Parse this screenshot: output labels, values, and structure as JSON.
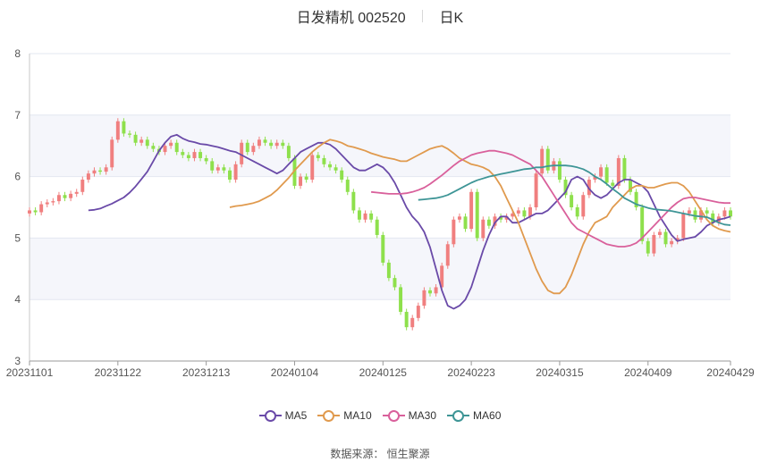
{
  "header": {
    "title": "日发精机 002520",
    "period": "日K"
  },
  "source": {
    "label": "数据来源：",
    "value": "恒生聚源"
  },
  "colors": {
    "up": "#f07f7f",
    "down": "#8ee04c",
    "grid": "#e3e7f1",
    "band": "#f5f6fb"
  },
  "chart_data": {
    "type": "candlestick",
    "title": "日发精机 002520",
    "ylim": [
      3,
      8
    ],
    "yticks": [
      "3",
      "4",
      "5",
      "6",
      "7",
      "8"
    ],
    "x_tick_labels": [
      "20231101",
      "20231122",
      "20231213",
      "20240104",
      "20240125",
      "20240223",
      "20240315",
      "20240409",
      "20240429"
    ],
    "x_tick_index": [
      0,
      15,
      30,
      45,
      60,
      75,
      90,
      105,
      119
    ],
    "n_days": 120,
    "close": [
      5.45,
      5.42,
      5.55,
      5.58,
      5.6,
      5.7,
      5.65,
      5.72,
      5.75,
      5.95,
      6.05,
      6.1,
      6.08,
      6.15,
      6.6,
      6.9,
      6.7,
      6.68,
      6.55,
      6.6,
      6.5,
      6.45,
      6.4,
      6.5,
      6.55,
      6.4,
      6.35,
      6.3,
      6.4,
      6.3,
      6.25,
      6.1,
      6.15,
      6.1,
      5.95,
      6.2,
      6.55,
      6.4,
      6.5,
      6.6,
      6.55,
      6.5,
      6.55,
      6.5,
      6.3,
      5.85,
      6.0,
      5.95,
      6.35,
      6.3,
      6.2,
      6.15,
      6.1,
      5.95,
      5.75,
      5.45,
      5.3,
      5.4,
      5.3,
      5.05,
      4.6,
      4.35,
      4.2,
      3.8,
      3.55,
      3.7,
      3.9,
      4.15,
      4.1,
      4.2,
      4.55,
      4.9,
      5.3,
      5.35,
      5.15,
      5.75,
      5.0,
      5.3,
      5.2,
      5.35,
      5.3,
      5.35,
      5.4,
      5.45,
      5.35,
      5.5,
      6.05,
      6.45,
      6.1,
      6.25,
      5.95,
      5.7,
      5.5,
      5.35,
      5.7,
      5.95,
      6.0,
      6.15,
      5.9,
      5.85,
      6.3,
      5.95,
      5.75,
      5.5,
      4.95,
      4.75,
      5.05,
      5.1,
      4.9,
      4.95,
      5.0,
      5.4,
      5.45,
      5.3,
      5.45,
      5.4,
      5.25,
      5.35,
      5.45,
      5.35
    ],
    "series": [
      {
        "name": "MA5",
        "color": "#6a4aa8",
        "values": [
          5.45,
          5.46,
          5.48,
          5.52,
          5.56,
          5.61,
          5.66,
          5.74,
          5.84,
          5.96,
          6.08,
          6.25,
          6.42,
          6.55,
          6.65,
          6.68,
          6.62,
          6.58,
          6.56,
          6.53,
          6.52,
          6.5,
          6.48,
          6.45,
          6.42,
          6.4,
          6.35,
          6.3,
          6.25,
          6.2,
          6.15,
          6.1,
          6.05,
          6.1,
          6.2,
          6.3,
          6.4,
          6.45,
          6.5,
          6.55,
          6.55,
          6.52,
          6.45,
          6.35,
          6.25,
          6.15,
          6.1,
          6.1,
          6.15,
          6.2,
          6.15,
          6.05,
          5.9,
          5.7,
          5.5,
          5.35,
          5.25,
          5.1,
          4.85,
          4.5,
          4.15,
          3.9,
          3.85,
          3.9,
          4.0,
          4.2,
          4.5,
          4.8,
          5.05,
          5.25,
          5.35,
          5.35,
          5.25,
          5.25,
          5.3,
          5.35,
          5.4,
          5.4,
          5.45,
          5.55,
          5.65,
          5.75,
          5.95,
          6.0,
          5.95,
          5.8,
          5.7,
          5.65,
          5.7,
          5.8,
          5.9,
          5.95,
          5.95,
          5.9,
          5.85,
          5.75,
          5.55,
          5.35,
          5.2,
          5.05,
          4.95,
          4.98,
          5.0,
          5.02,
          5.1,
          5.2,
          5.25,
          5.3,
          5.32,
          5.35
        ]
      },
      {
        "name": "MA10",
        "color": "#e09a4e",
        "values": [
          5.5,
          5.52,
          5.53,
          5.55,
          5.57,
          5.6,
          5.65,
          5.7,
          5.78,
          5.88,
          5.98,
          6.1,
          6.2,
          6.3,
          6.4,
          6.48,
          6.55,
          6.6,
          6.58,
          6.55,
          6.5,
          6.48,
          6.45,
          6.42,
          6.38,
          6.35,
          6.32,
          6.3,
          6.28,
          6.25,
          6.25,
          6.3,
          6.35,
          6.4,
          6.45,
          6.48,
          6.5,
          6.45,
          6.38,
          6.3,
          6.25,
          6.2,
          6.18,
          6.15,
          6.1,
          6.0,
          5.85,
          5.65,
          5.45,
          5.25,
          5.0,
          4.75,
          4.5,
          4.3,
          4.15,
          4.1,
          4.1,
          4.2,
          4.4,
          4.65,
          4.9,
          5.1,
          5.25,
          5.3,
          5.35,
          5.5,
          5.6,
          5.7,
          5.8,
          5.85,
          5.85,
          5.82,
          5.82,
          5.85,
          5.88,
          5.9,
          5.9,
          5.85,
          5.75,
          5.6,
          5.45,
          5.3,
          5.2,
          5.15,
          5.12,
          5.1
        ]
      },
      {
        "name": "MA30",
        "color": "#d9609b",
        "values": [
          5.75,
          5.74,
          5.73,
          5.72,
          5.72,
          5.72,
          5.73,
          5.75,
          5.78,
          5.82,
          5.88,
          5.95,
          6.02,
          6.1,
          6.18,
          6.25,
          6.3,
          6.35,
          6.38,
          6.4,
          6.42,
          6.42,
          6.4,
          6.38,
          6.35,
          6.3,
          6.25,
          6.2,
          6.1,
          6.0,
          5.85,
          5.7,
          5.55,
          5.4,
          5.25,
          5.15,
          5.1,
          5.05,
          5.0,
          4.95,
          4.9,
          4.88,
          4.86,
          4.86,
          4.88,
          4.92,
          5.0,
          5.1,
          5.2,
          5.3,
          5.4,
          5.5,
          5.58,
          5.64,
          5.66,
          5.66,
          5.64,
          5.62,
          5.6,
          5.58,
          5.57,
          5.57
        ]
      },
      {
        "name": "MA60",
        "color": "#3e9596",
        "values": [
          5.62,
          5.63,
          5.64,
          5.65,
          5.67,
          5.7,
          5.75,
          5.8,
          5.85,
          5.9,
          5.94,
          5.97,
          6.0,
          6.02,
          6.04,
          6.06,
          6.08,
          6.1,
          6.12,
          6.13,
          6.15,
          6.15,
          6.17,
          6.18,
          6.18,
          6.18,
          6.17,
          6.15,
          6.12,
          6.07,
          6.0,
          5.95,
          5.88,
          5.8,
          5.73,
          5.65,
          5.6,
          5.55,
          5.52,
          5.49,
          5.47,
          5.46,
          5.45,
          5.44,
          5.42,
          5.4,
          5.38,
          5.36,
          5.35,
          5.34,
          5.3,
          5.25,
          5.22,
          5.21
        ]
      }
    ]
  }
}
